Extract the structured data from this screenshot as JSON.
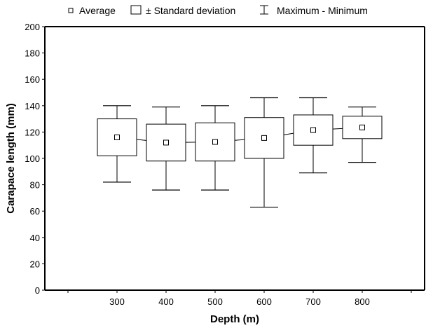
{
  "chart_data": {
    "type": "box",
    "title": "",
    "xlabel": "Depth (m)",
    "ylabel": "Carapace length (mm)",
    "ylim": [
      0,
      200
    ],
    "yticks": [
      0,
      20,
      40,
      60,
      80,
      100,
      120,
      140,
      160,
      180,
      200
    ],
    "categories": [
      "300",
      "400",
      "500",
      "600",
      "700",
      "800"
    ],
    "average": [
      116,
      112,
      112.5,
      115.5,
      121.5,
      123.5
    ],
    "sd_low": [
      102,
      98,
      98,
      100,
      110,
      115
    ],
    "sd_high": [
      130,
      126,
      127,
      131,
      133,
      132
    ],
    "min": [
      82,
      76,
      76,
      63,
      89,
      97
    ],
    "max": [
      140,
      139,
      140,
      146,
      146,
      139
    ],
    "legend": [
      "Average",
      "± Standard deviation",
      "Maximum - Minimum"
    ],
    "legend_position": "top",
    "grid": false
  }
}
